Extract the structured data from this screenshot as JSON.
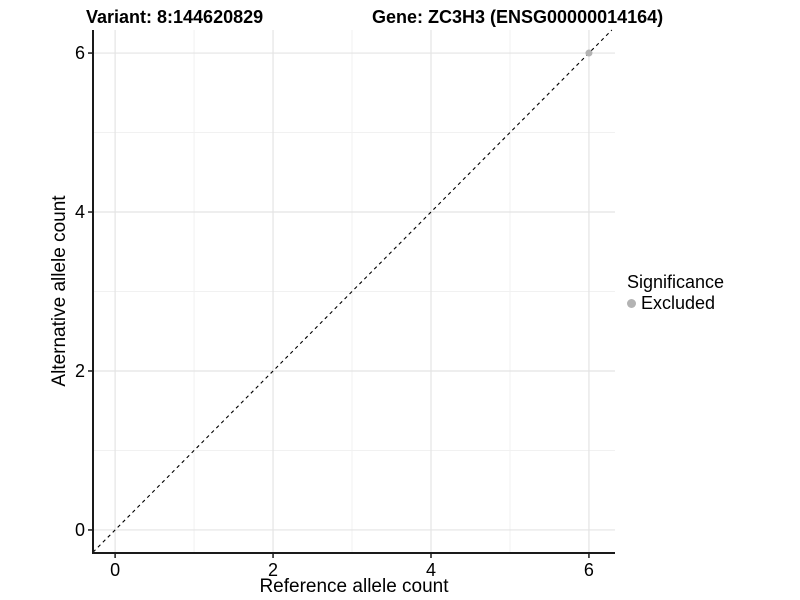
{
  "chart_data": {
    "type": "scatter",
    "title_left": "Variant: 8:144620829",
    "title_right": "Gene: ZC3H3 (ENSG00000014164)",
    "xlabel": "Reference allele count",
    "ylabel": "Alternative allele count",
    "xlim": [
      -0.28,
      6.33
    ],
    "ylim": [
      -0.29,
      6.29
    ],
    "xticks": [
      0,
      2,
      4,
      6
    ],
    "yticks": [
      0,
      2,
      4,
      6
    ],
    "xticks_minor": [
      1,
      3,
      5
    ],
    "yticks_minor": [
      1,
      3,
      5
    ],
    "grid": true,
    "identity_line": {
      "style": "dashed",
      "x1": -0.28,
      "y1": -0.28,
      "x2": 6.29,
      "y2": 6.29
    },
    "series": [
      {
        "name": "Excluded",
        "color": "#b3b3b3",
        "points": [
          [
            6,
            6
          ]
        ]
      }
    ],
    "legend": {
      "title": "Significance",
      "position": "right",
      "items": [
        {
          "label": "Excluded",
          "color": "#b3b3b3"
        }
      ]
    }
  },
  "colors": {
    "background": "#ffffff",
    "grid_major": "#e4e4e4",
    "grid_minor": "#f1f1f1",
    "axis_line": "#1a1a1a",
    "identity_line": "#000000",
    "text": "#000000"
  }
}
